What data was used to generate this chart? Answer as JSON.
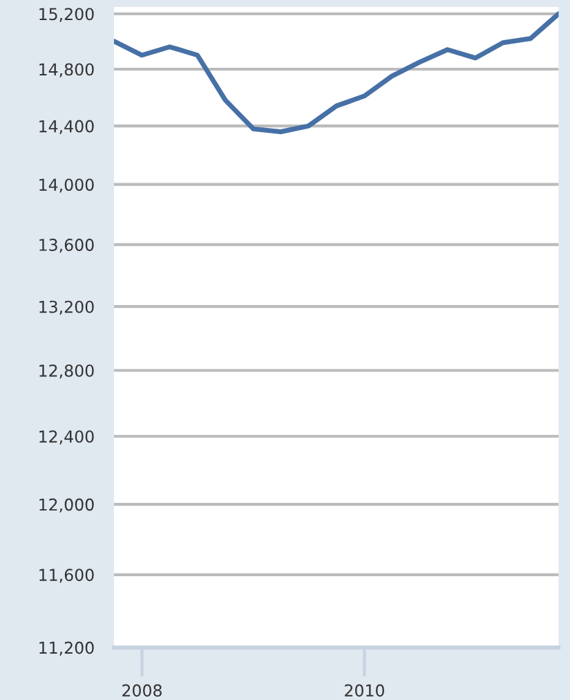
{
  "chart_data": {
    "type": "line",
    "x": [
      "2007-10",
      "2008-01",
      "2008-04",
      "2008-07",
      "2008-10",
      "2009-01",
      "2009-04",
      "2009-07",
      "2009-10",
      "2010-01",
      "2010-04",
      "2010-07",
      "2010-10",
      "2011-01",
      "2011-04",
      "2011-07",
      "2011-10"
    ],
    "series": [
      {
        "color": "#4670a6",
        "values": [
          15000,
          14900,
          14960,
          14900,
          14580,
          14380,
          14360,
          14400,
          14540,
          14610,
          14750,
          14850,
          14940,
          14880,
          14990,
          15020,
          15200
        ]
      }
    ],
    "log": true,
    "ylim": [
      11200,
      15250
    ],
    "yticks": [
      {
        "value": 11200,
        "label": "11,200"
      },
      {
        "value": 11600,
        "label": "11,600"
      },
      {
        "value": 12000,
        "label": "12,000"
      },
      {
        "value": 12400,
        "label": "12,400"
      },
      {
        "value": 12800,
        "label": "12,800"
      },
      {
        "value": 13200,
        "label": "13,200"
      },
      {
        "value": 13600,
        "label": "13,600"
      },
      {
        "value": 14000,
        "label": "14,000"
      },
      {
        "value": 14400,
        "label": "14,400"
      },
      {
        "value": 14800,
        "label": "14,800"
      },
      {
        "value": 15200,
        "label": "15,200"
      }
    ],
    "xlim": [
      "2007-10",
      "2011-10"
    ],
    "xticks": [
      {
        "value": "2008-01",
        "label": "2008"
      },
      {
        "value": "2010-01",
        "label": "2010"
      }
    ],
    "grid": "y",
    "marker": "none",
    "line_style": "solid"
  }
}
